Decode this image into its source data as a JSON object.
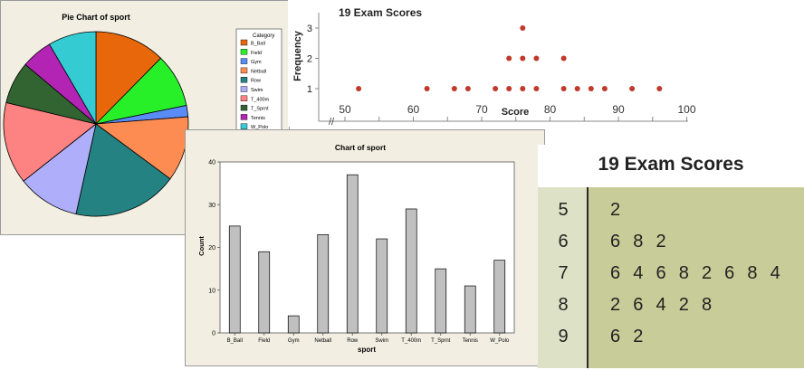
{
  "colors": {
    "pie": [
      "#e8670a",
      "#28f028",
      "#5a8cf8",
      "#fd8c52",
      "#248282",
      "#aeaefa",
      "#fd8282",
      "#326432",
      "#b424b4",
      "#34ccd2"
    ],
    "bar_fill": "#c0c0c0",
    "dot": "#c0392b",
    "stem_bg": "#dde2c6",
    "leaf_bg": "#c8cc98"
  },
  "chart_data": [
    {
      "type": "pie",
      "title": "Pie Chart of sport",
      "legend_title": "Category",
      "legend_position": "right",
      "categories": [
        "B_Ball",
        "Field",
        "Gym",
        "Netball",
        "Row",
        "Swim",
        "T_400m",
        "T_Sprnt",
        "Tennis",
        "W_Polo"
      ],
      "values": [
        25,
        19,
        4,
        23,
        37,
        22,
        29,
        15,
        11,
        17
      ]
    },
    {
      "type": "bar",
      "title": "Chart of sport",
      "xlabel": "sport",
      "ylabel": "Count",
      "categories": [
        "B_Ball",
        "Field",
        "Gym",
        "Netball",
        "Row",
        "Swim",
        "T_400m",
        "T_Sprnt",
        "Tennis",
        "W_Polo"
      ],
      "values": [
        25,
        19,
        4,
        23,
        37,
        22,
        29,
        15,
        11,
        17
      ],
      "ylim": [
        0,
        40
      ],
      "yticks": [
        0,
        10,
        20,
        30,
        40
      ]
    },
    {
      "type": "scatter",
      "title": "19 Exam Scores",
      "xlabel": "Score",
      "ylabel": "Frequency",
      "x": [
        52,
        62,
        66,
        68,
        72,
        74,
        74,
        76,
        76,
        76,
        78,
        78,
        82,
        82,
        84,
        86,
        88,
        92,
        96
      ],
      "y": [
        1,
        1,
        1,
        1,
        1,
        1,
        2,
        1,
        2,
        3,
        1,
        2,
        1,
        2,
        1,
        1,
        1,
        1,
        1
      ],
      "xlim": [
        45,
        100
      ],
      "xticks": [
        50,
        60,
        70,
        80,
        90,
        100
      ],
      "yticks": [
        1,
        2,
        3
      ],
      "axis_break": "//"
    },
    {
      "type": "table",
      "title": "19 Exam Scores",
      "stems": [
        "5",
        "6",
        "7",
        "8",
        "9"
      ],
      "leaves": [
        "2",
        "6 8 2",
        "6 4 6 8 2 6 8 4",
        "2 6 4 2 8",
        "6 2"
      ]
    }
  ]
}
